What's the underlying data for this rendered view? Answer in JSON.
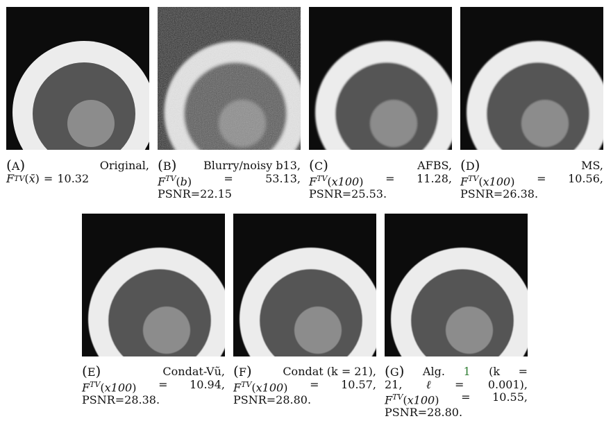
{
  "figure": {
    "panels": [
      {
        "id": "A",
        "label": "A",
        "title": "Original,",
        "fn_arg": "x̄",
        "value": "10.32",
        "psnr": "",
        "noisy": false,
        "blur": 0
      },
      {
        "id": "B",
        "label": "B",
        "title": "Blurry/noisy b13,",
        "fn_arg": "b",
        "value": "53.13,",
        "psnr": "PSNR=22.15",
        "noisy": true,
        "blur": 2.0
      },
      {
        "id": "C",
        "label": "C",
        "title": "AFBS,",
        "fn_arg": "x100",
        "value": "11.28,",
        "psnr": "PSNR=25.53.",
        "noisy": false,
        "blur": 1.2
      },
      {
        "id": "D",
        "label": "D",
        "title": "MS,",
        "fn_arg": "x100",
        "value": "10.56,",
        "psnr": "PSNR=26.38.",
        "noisy": false,
        "blur": 1.0
      },
      {
        "id": "E",
        "label": "E",
        "title": "Condat-Vũ,",
        "fn_arg": "x100",
        "value": "10.94,",
        "psnr": "PSNR=28.38.",
        "noisy": false,
        "blur": 0.5
      },
      {
        "id": "F",
        "label": "F",
        "title": "Condat (k = 21),",
        "fn_arg": "x100",
        "value": "10.57,",
        "psnr": "PSNR=28.80.",
        "noisy": false,
        "blur": 0.4
      },
      {
        "id": "G",
        "label": "G",
        "title": "Alg. 1 (k = 21, ℓ = 0.001),",
        "title_parts": [
          "Alg.",
          "1",
          "(k",
          "="
        ],
        "title_line2": [
          "21,",
          "ℓ",
          "=",
          "0.001),"
        ],
        "fn_arg": "x100",
        "value": "10.55,",
        "psnr": "PSNR=28.80.",
        "noisy": false,
        "blur": 0.4
      }
    ],
    "colors": {
      "background": "#0c0c0c",
      "outer_ring": "#ececec",
      "middle_disk": "#555555",
      "inner_disk": "#8c8c8c",
      "ref_link": "#2e7d32"
    },
    "symbols": {
      "function": "F",
      "superscript": "TV",
      "equals": "="
    }
  }
}
